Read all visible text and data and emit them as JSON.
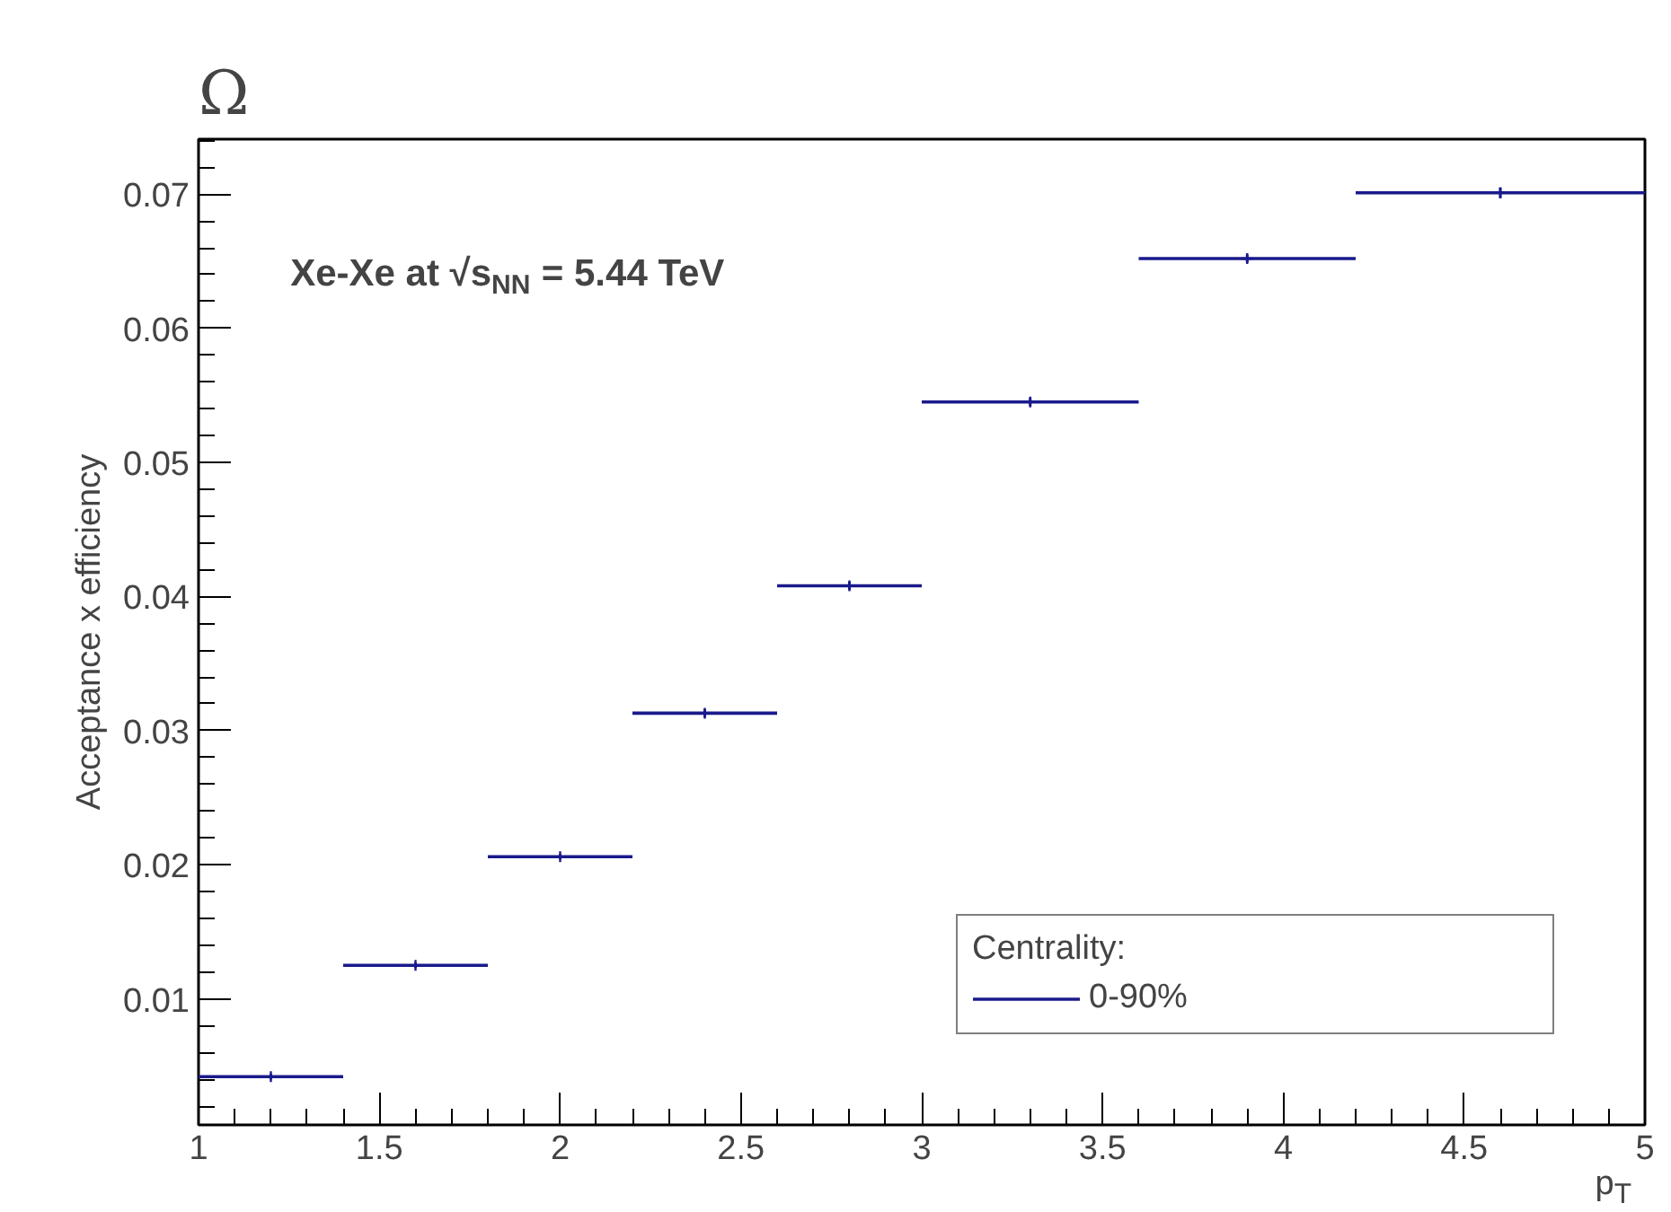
{
  "chart_data": {
    "type": "scatter",
    "title": "Ω",
    "xlabel": "p$_{T}$",
    "ylabel": "Acceptance x efficiency",
    "annotations": [
      "Xe-Xe at √s$_{NN}$ = 5.44 TeV"
    ],
    "legend_title": "Centrality:",
    "x": [
      1.2,
      1.6,
      2.0,
      2.4,
      2.8,
      3.3,
      3.9,
      4.6
    ],
    "series": [
      {
        "name": "0-90%",
        "color": "#1a1a8c",
        "values": [
          0.0042,
          0.0125,
          0.0206,
          0.0313,
          0.0408,
          0.0545,
          0.0652,
          0.0701
        ],
        "xerrors": [
          0.2,
          0.2,
          0.2,
          0.2,
          0.2,
          0.3,
          0.3,
          0.4
        ],
        "errors": [
          0.0002,
          0.0002,
          0.0002,
          0.0003,
          0.0003,
          0.0003,
          0.0003,
          0.0004
        ]
      }
    ],
    "xlim": [
      1,
      5
    ],
    "ylim": [
      0.0006,
      0.0741
    ],
    "xticks": [
      1,
      1.5,
      2,
      2.5,
      3,
      3.5,
      4,
      4.5,
      5
    ],
    "yticks": [
      0.01,
      0.02,
      0.03,
      0.04,
      0.05,
      0.06,
      0.07
    ],
    "grid": false,
    "legend": "bottom right",
    "marker": "cross"
  }
}
